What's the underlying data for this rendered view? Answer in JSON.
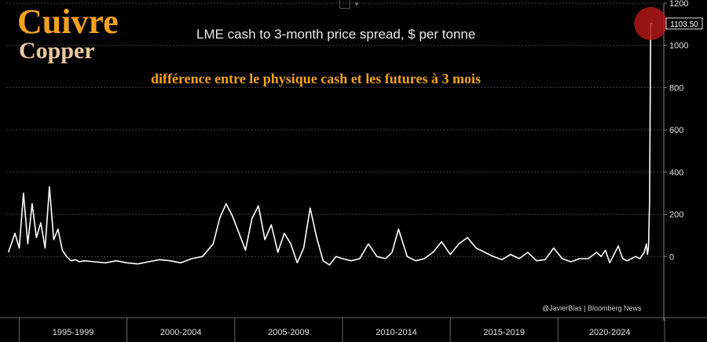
{
  "overlay": {
    "title_fr": "Cuivre",
    "title_en": "Copper",
    "subtitle": "différence entre le physique cash et les futures à 3 mois"
  },
  "credit": "@JavierBlas | Bloomberg News",
  "chart_data": {
    "type": "line",
    "title": "LME cash to 3-month price spread, $ per tonne",
    "xlabel": "",
    "ylabel": "",
    "x_period_labels": [
      "1995-1999",
      "2000-2004",
      "2005-2009",
      "2010-2014",
      "2015-2019",
      "2020-2024"
    ],
    "ylim": [
      -200,
      1200
    ],
    "yticks": [
      0,
      200,
      400,
      600,
      800,
      1000,
      1200
    ],
    "last_value_label": "1103.50",
    "grid": true,
    "colors": {
      "line": "#ffffff",
      "grid": "#444444",
      "marker": "#b01818",
      "background": "#000000"
    },
    "series": [
      {
        "x": [
          1994.5,
          1994.8,
          1995.0,
          1995.2,
          1995.4,
          1995.6,
          1995.8,
          1996.0,
          1996.2,
          1996.4,
          1996.6,
          1996.8,
          1997.0,
          1997.2,
          1997.4,
          1997.6,
          1997.8,
          1998.0,
          1998.5,
          1999.0,
          1999.5,
          2000.0,
          2000.5,
          2001.0,
          2001.5,
          2002.0,
          2002.5,
          2003.0,
          2003.5,
          2004.0,
          2004.3,
          2004.6,
          2004.9,
          2005.2,
          2005.5,
          2005.8,
          2006.1,
          2006.4,
          2006.7,
          2007.0,
          2007.3,
          2007.6,
          2007.9,
          2008.2,
          2008.5,
          2008.8,
          2009.1,
          2009.4,
          2009.7,
          2010.0,
          2010.4,
          2010.8,
          2011.2,
          2011.6,
          2012.0,
          2012.3,
          2012.6,
          2013.0,
          2013.4,
          2013.8,
          2014.2,
          2014.6,
          2015.0,
          2015.4,
          2015.8,
          2016.2,
          2016.6,
          2017.0,
          2017.4,
          2017.8,
          2018.2,
          2018.6,
          2019.0,
          2019.4,
          2019.8,
          2020.2,
          2020.6,
          2021.0,
          2021.4,
          2021.8,
          2022.0,
          2022.2,
          2022.4,
          2022.6,
          2022.8,
          2023.0,
          2023.2,
          2023.4,
          2023.6,
          2023.8,
          2024.0,
          2024.1,
          2024.15,
          2024.2,
          2024.25,
          2024.3,
          2024.4
        ],
        "y": [
          20,
          110,
          40,
          300,
          60,
          250,
          90,
          160,
          40,
          330,
          80,
          130,
          30,
          0,
          -20,
          -15,
          -25,
          -20,
          -25,
          -30,
          -20,
          -30,
          -35,
          -25,
          -15,
          -20,
          -30,
          -10,
          0,
          60,
          180,
          250,
          190,
          110,
          30,
          180,
          240,
          80,
          150,
          20,
          110,
          60,
          -30,
          40,
          230,
          90,
          -20,
          -40,
          0,
          -10,
          -20,
          -10,
          60,
          0,
          -10,
          20,
          130,
          0,
          -20,
          -10,
          20,
          70,
          10,
          60,
          90,
          40,
          20,
          0,
          -15,
          10,
          -10,
          20,
          -20,
          -15,
          40,
          -10,
          -25,
          -10,
          -10,
          20,
          0,
          30,
          -30,
          10,
          50,
          -10,
          -20,
          -10,
          0,
          -10,
          20,
          60,
          10,
          40,
          260,
          1103.5,
          1103.5
        ]
      }
    ]
  }
}
